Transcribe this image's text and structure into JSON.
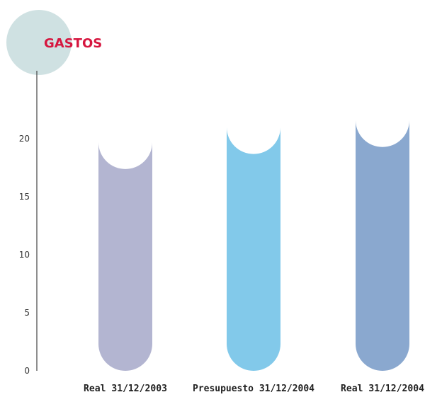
{
  "chart_data": {
    "type": "bar",
    "title": "GASTOS",
    "xlabel": "",
    "ylabel": "",
    "categories": [
      "Real 31/12/2003",
      "Presupuesto 31/12/2004",
      "Real 31/12/2004"
    ],
    "values": [
      19.7,
      21.0,
      21.6
    ],
    "yticks": [
      "0",
      "5",
      "10",
      "15",
      "20"
    ],
    "ylim": [
      0,
      23
    ],
    "grid": false,
    "legend": "none",
    "colors": [
      "#b3b5d1",
      "#82c9ea",
      "#8aa8cf"
    ],
    "title_color": "#d6163f",
    "title_badge_color": "#cfe1e2"
  }
}
